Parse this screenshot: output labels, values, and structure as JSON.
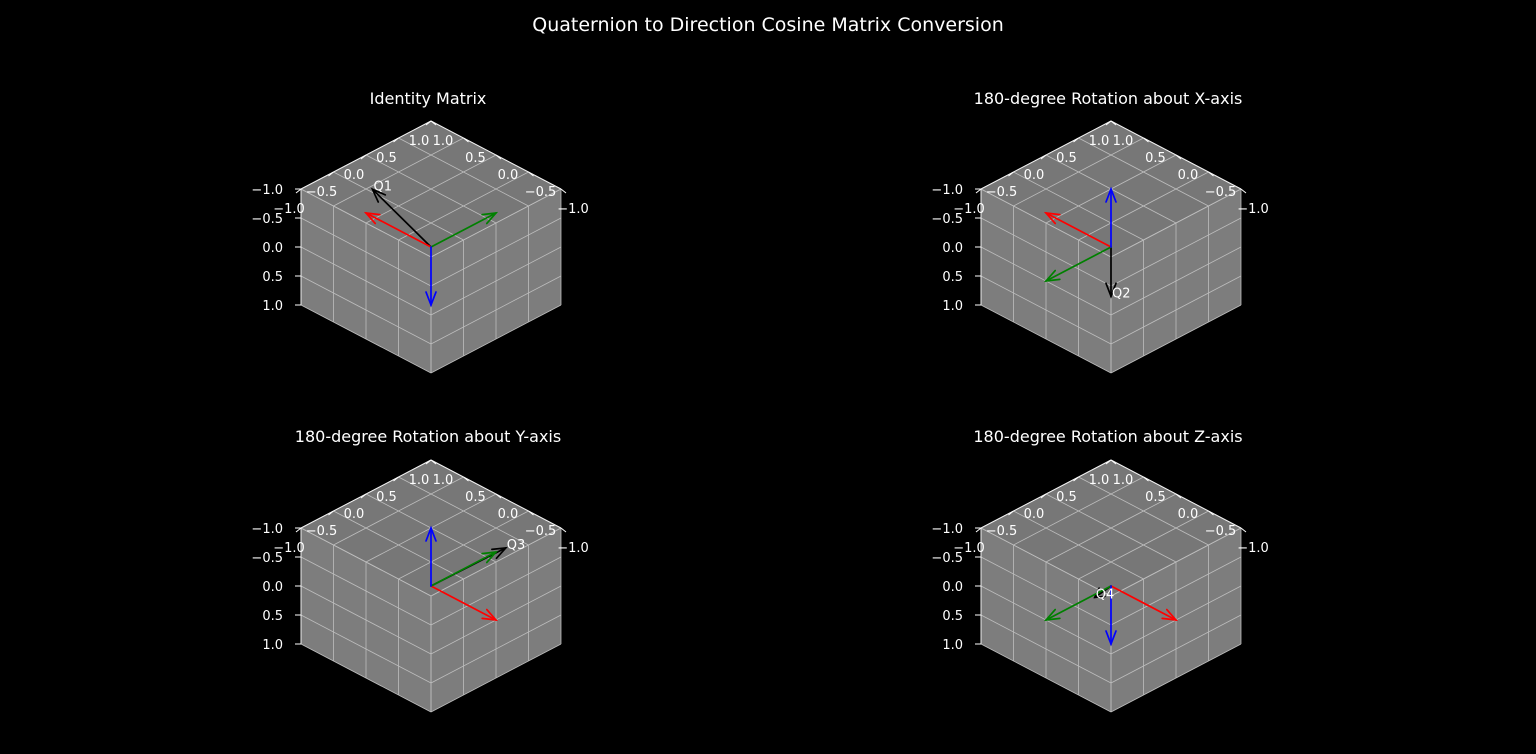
{
  "figure": {
    "title": "Quaternion to Direction Cosine Matrix Conversion"
  },
  "colors": {
    "background": "#000000",
    "pane_wall": "#7d7d7d",
    "pane_floor": "#777777",
    "grid": "#bdbdbd",
    "x_axis": "#ff0000",
    "y_axis": "#008000",
    "z_axis": "#0000ff",
    "quaternion": "#000000",
    "text": "#ffffff"
  },
  "chart_data": [
    {
      "type": "3d-quiver",
      "title": "Identity Matrix",
      "xlim": [
        -1,
        1
      ],
      "ylim": [
        -1,
        1
      ],
      "zlim": [
        -1,
        1
      ],
      "x_ticks": [
        "−1.0",
        "−0.5",
        "0.0",
        "0.5",
        "1.0"
      ],
      "y_ticks": [
        "−1.0",
        "−0.5",
        "0.0",
        "0.5",
        "1.0"
      ],
      "z_ticks": [
        "−1.0",
        "−0.5",
        "0.0",
        "0.5",
        "1.0"
      ],
      "grid": true,
      "axes": [
        {
          "axis": "x",
          "color": "#ff0000",
          "vector": [
            1,
            0,
            0
          ]
        },
        {
          "axis": "y",
          "color": "#008000",
          "vector": [
            0,
            1,
            0
          ]
        },
        {
          "axis": "z",
          "color": "#0000ff",
          "vector": [
            0,
            0,
            1
          ]
        }
      ],
      "quaternion_vector": {
        "label": "Q1",
        "color": "#000000",
        "vector": [
          1,
          0.1,
          -0.35
        ]
      }
    },
    {
      "type": "3d-quiver",
      "title": "180-degree Rotation about X-axis",
      "xlim": [
        -1,
        1
      ],
      "ylim": [
        -1,
        1
      ],
      "zlim": [
        -1,
        1
      ],
      "x_ticks": [
        "−1.0",
        "−0.5",
        "0.0",
        "0.5",
        "1.0"
      ],
      "y_ticks": [
        "−1.0",
        "−0.5",
        "0.0",
        "0.5",
        "1.0"
      ],
      "z_ticks": [
        "−1.0",
        "−0.5",
        "0.0",
        "0.5",
        "1.0"
      ],
      "grid": true,
      "axes": [
        {
          "axis": "x",
          "color": "#ff0000",
          "vector": [
            1,
            0,
            0
          ]
        },
        {
          "axis": "y",
          "color": "#008000",
          "vector": [
            0,
            -1,
            0
          ]
        },
        {
          "axis": "z",
          "color": "#0000ff",
          "vector": [
            0,
            0,
            -1
          ]
        }
      ],
      "quaternion_vector": {
        "label": "Q2",
        "color": "#000000",
        "vector": [
          0,
          0,
          0.85
        ]
      }
    },
    {
      "type": "3d-quiver",
      "title": "180-degree Rotation about Y-axis",
      "xlim": [
        -1,
        1
      ],
      "ylim": [
        -1,
        1
      ],
      "zlim": [
        -1,
        1
      ],
      "x_ticks": [
        "−1.0",
        "−0.5",
        "0.0",
        "0.5",
        "1.0"
      ],
      "y_ticks": [
        "−1.0",
        "−0.5",
        "0.0",
        "0.5",
        "1.0"
      ],
      "z_ticks": [
        "−1.0",
        "−0.5",
        "0.0",
        "0.5",
        "1.0"
      ],
      "grid": true,
      "axes": [
        {
          "axis": "x",
          "color": "#ff0000",
          "vector": [
            -1,
            0,
            0
          ]
        },
        {
          "axis": "y",
          "color": "#008000",
          "vector": [
            0,
            1,
            0
          ]
        },
        {
          "axis": "z",
          "color": "#0000ff",
          "vector": [
            0,
            0,
            -1
          ]
        }
      ],
      "quaternion_vector": {
        "label": "Q3",
        "color": "#000000",
        "vector": [
          -0.1,
          1.05,
          -0.1
        ]
      }
    },
    {
      "type": "3d-quiver",
      "title": "180-degree Rotation about Z-axis",
      "xlim": [
        -1,
        1
      ],
      "ylim": [
        -1,
        1
      ],
      "zlim": [
        -1,
        1
      ],
      "x_ticks": [
        "−1.0",
        "−0.5",
        "0.0",
        "0.5",
        "1.0"
      ],
      "y_ticks": [
        "−1.0",
        "−0.5",
        "0.0",
        "0.5",
        "1.0"
      ],
      "z_ticks": [
        "−1.0",
        "−0.5",
        "0.0",
        "0.5",
        "1.0"
      ],
      "grid": true,
      "axes": [
        {
          "axis": "x",
          "color": "#ff0000",
          "vector": [
            -1,
            0,
            0
          ]
        },
        {
          "axis": "y",
          "color": "#008000",
          "vector": [
            0,
            -1,
            0
          ]
        },
        {
          "axis": "z",
          "color": "#0000ff",
          "vector": [
            0,
            0,
            1
          ]
        }
      ],
      "quaternion_vector": {
        "label": "Q4",
        "color": "#000000",
        "vector": [
          0,
          -0.25,
          0.05
        ]
      }
    }
  ]
}
